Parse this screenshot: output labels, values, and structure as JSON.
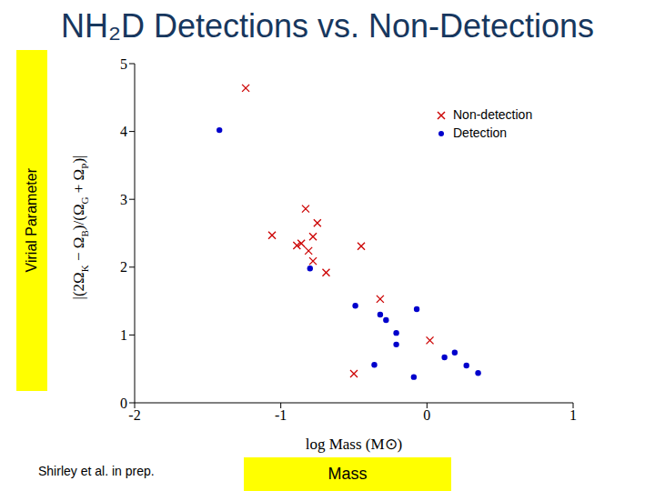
{
  "chart_data": {
    "type": "scatter",
    "title": "NH₂D Detections vs. Non-Detections",
    "x_label": "log Mass (M⊙)",
    "y_label": "|(2ΩK − ΩB)/(ΩG + ΩP)|",
    "annotations": [
      "Virial Parameter",
      "Mass",
      "Shirley et al. in prep."
    ],
    "xlim": [
      -2,
      1
    ],
    "xticks": [
      -2,
      -1,
      0,
      1
    ],
    "ylim": [
      0,
      5
    ],
    "yticks": [
      0,
      1,
      2,
      3,
      4,
      5
    ],
    "legend": "upper right",
    "series": [
      {
        "name": "Non-detection",
        "color": "#cc0000",
        "marker": "x",
        "x": [
          -1.24,
          -0.83,
          -1.06,
          -0.75,
          -0.89,
          -0.78,
          -0.86,
          -0.81,
          -0.78,
          -0.69,
          -0.45,
          -0.32,
          0.02,
          -0.5
        ],
        "y": [
          4.64,
          2.86,
          2.47,
          2.65,
          2.32,
          2.45,
          2.35,
          2.24,
          2.09,
          1.92,
          2.31,
          1.53,
          0.92,
          0.43
        ]
      },
      {
        "name": "Detection",
        "color": "#0000cc",
        "marker": "circle",
        "x": [
          -1.42,
          -0.8,
          -0.49,
          -0.32,
          -0.28,
          -0.21,
          -0.21,
          -0.07,
          -0.36,
          -0.09,
          0.12,
          0.19,
          0.27,
          0.35
        ],
        "y": [
          4.02,
          1.98,
          1.43,
          1.3,
          1.22,
          1.03,
          0.86,
          1.38,
          0.56,
          0.38,
          0.67,
          0.74,
          0.55,
          0.44
        ]
      }
    ]
  }
}
